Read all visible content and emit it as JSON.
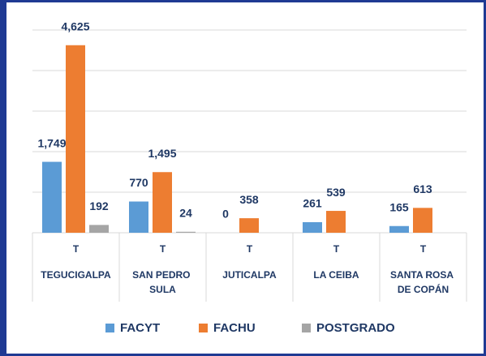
{
  "chart_data": {
    "type": "bar",
    "category_headers": [
      "T",
      "T",
      "T",
      "T",
      "T"
    ],
    "categories": [
      "TEGUCIGALPA",
      "SAN PEDRO SULA",
      "JUTICALPA",
      "LA CEIBA",
      "SANTA ROSA DE COPÁN"
    ],
    "series": [
      {
        "name": "FACYT",
        "color": "#5b9bd5",
        "values": [
          1749,
          770,
          0,
          261,
          165
        ],
        "value_labels": [
          "1,749",
          "770",
          "0",
          "261",
          "165"
        ]
      },
      {
        "name": "FACHU",
        "color": "#ed7d31",
        "values": [
          4625,
          1495,
          358,
          539,
          613
        ],
        "value_labels": [
          "4,625",
          "1,495",
          "358",
          "539",
          "613"
        ]
      },
      {
        "name": "POSTGRADO",
        "color": "#a5a5a5",
        "values": [
          192,
          24,
          null,
          null,
          null
        ],
        "value_labels": [
          "192",
          "24",
          null,
          null,
          null
        ]
      }
    ],
    "ylim": [
      0,
      5000
    ],
    "yticks": [
      0,
      1000,
      2000,
      3000,
      4000,
      5000
    ],
    "grid": true
  }
}
